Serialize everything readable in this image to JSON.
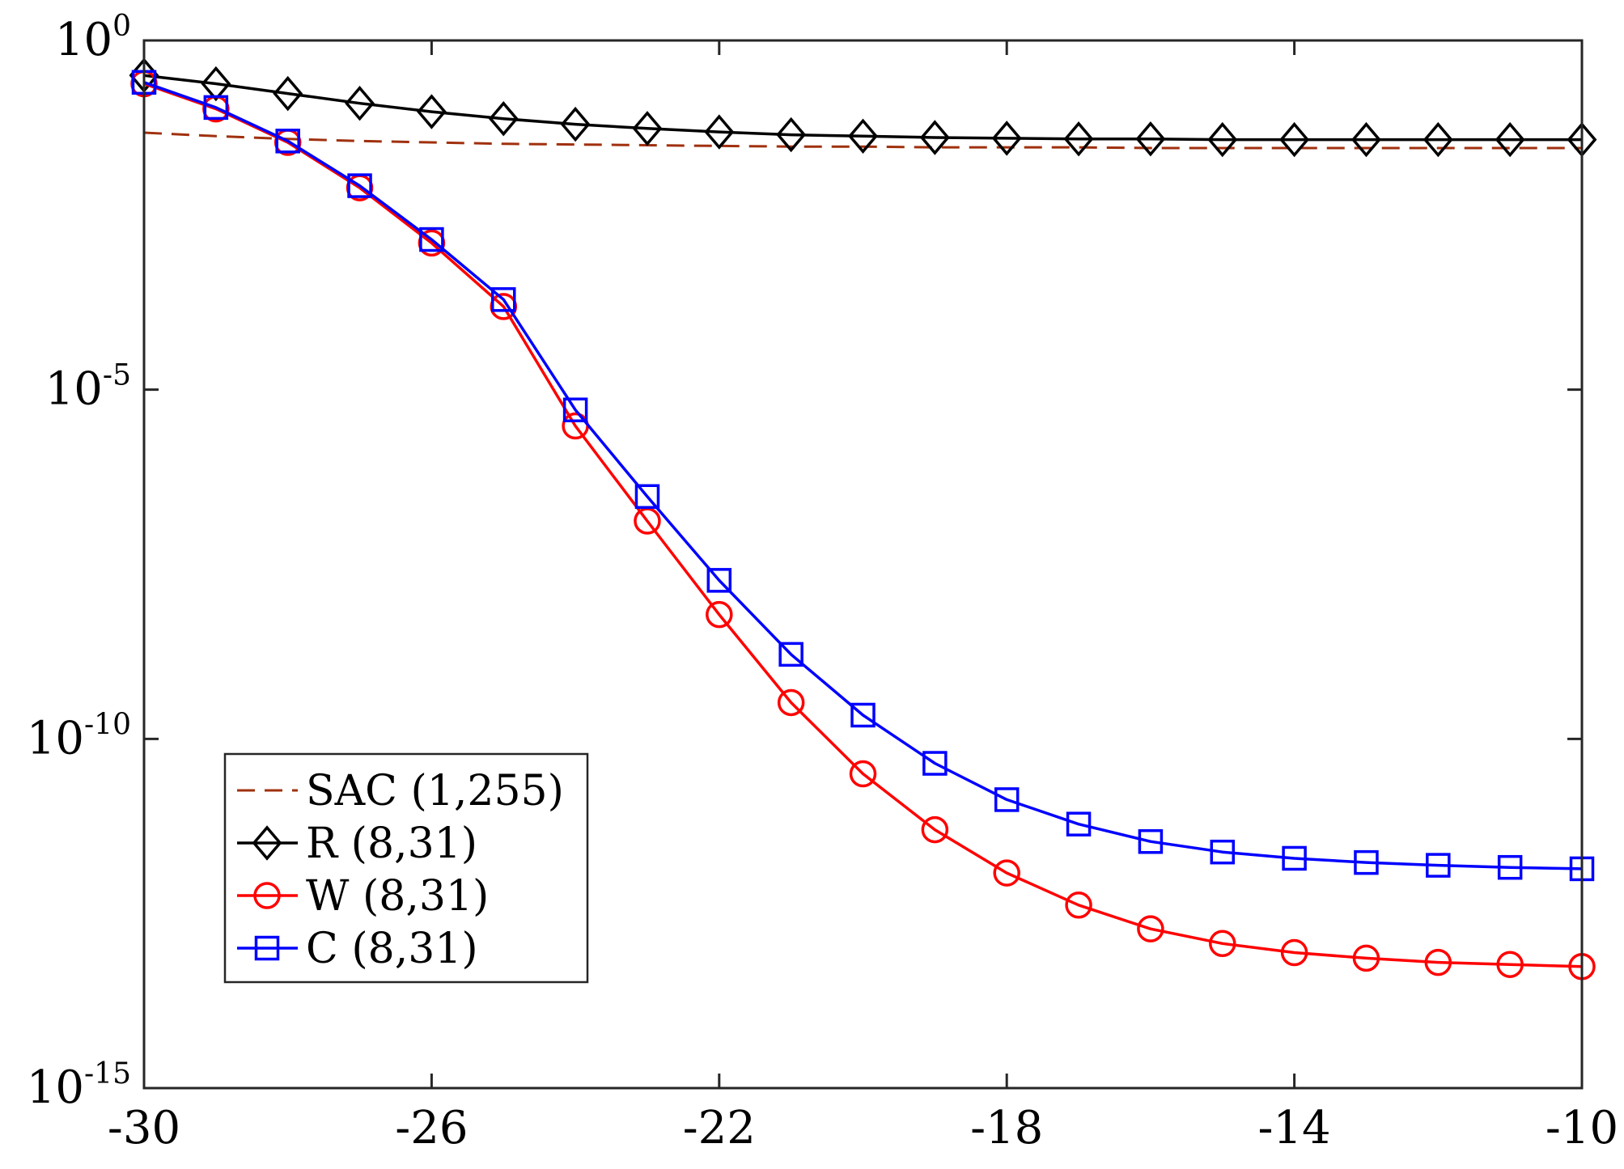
{
  "chart_data": {
    "type": "line",
    "title": "",
    "xlabel": "",
    "ylabel": "",
    "xscale": "linear",
    "yscale": "log",
    "xlim": [
      -30,
      -10
    ],
    "ylim_exp": [
      -15,
      0
    ],
    "x_ticks": [
      "-30",
      "-26",
      "-22",
      "-18",
      "-14",
      "-10"
    ],
    "x_tick_values": [
      -30,
      -26,
      -22,
      -18,
      -14,
      -10
    ],
    "y_ticks": [
      {
        "base": "10",
        "exp": "0",
        "value_exp": 0
      },
      {
        "base": "10",
        "exp": "-5",
        "value_exp": -5
      },
      {
        "base": "10",
        "exp": "-10",
        "value_exp": -10
      },
      {
        "base": "10",
        "exp": "-15",
        "value_exp": -15
      }
    ],
    "legend_position": "bottom-left",
    "series": [
      {
        "name": "SAC (1,255)",
        "color": "#a0300e",
        "style": "dashed",
        "marker": "none",
        "x": [
          -30,
          -29,
          -28,
          -27,
          -26,
          -25,
          -24,
          -23,
          -22,
          -21,
          -20,
          -19,
          -18,
          -17,
          -16,
          -15,
          -14,
          -13,
          -12,
          -11,
          -10
        ],
        "log10_y": [
          -1.32,
          -1.37,
          -1.41,
          -1.44,
          -1.46,
          -1.48,
          -1.49,
          -1.5,
          -1.51,
          -1.52,
          -1.52,
          -1.53,
          -1.53,
          -1.53,
          -1.54,
          -1.54,
          -1.54,
          -1.54,
          -1.54,
          -1.54,
          -1.54
        ]
      },
      {
        "name": "R (8,31)",
        "color": "#000000",
        "style": "solid",
        "marker": "diamond",
        "x": [
          -30,
          -29,
          -28,
          -27,
          -26,
          -25,
          -24,
          -23,
          -22,
          -21,
          -20,
          -19,
          -18,
          -17,
          -16,
          -15,
          -14,
          -13,
          -12,
          -11,
          -10
        ],
        "log10_y": [
          -0.5,
          -0.62,
          -0.76,
          -0.9,
          -1.02,
          -1.12,
          -1.2,
          -1.26,
          -1.31,
          -1.35,
          -1.37,
          -1.39,
          -1.4,
          -1.41,
          -1.41,
          -1.42,
          -1.42,
          -1.42,
          -1.42,
          -1.42,
          -1.42
        ]
      },
      {
        "name": "W (8,31)",
        "color": "#ff0000",
        "style": "solid",
        "marker": "circle",
        "x": [
          -30,
          -29,
          -28,
          -27,
          -26,
          -25,
          -24,
          -23,
          -22,
          -21,
          -20,
          -19,
          -18,
          -17,
          -16,
          -15,
          -14,
          -13,
          -12,
          -11,
          -10
        ],
        "log10_y": [
          -0.62,
          -0.98,
          -1.46,
          -2.11,
          -2.9,
          -3.81,
          -5.52,
          -6.88,
          -8.22,
          -9.48,
          -10.5,
          -11.3,
          -11.92,
          -12.38,
          -12.72,
          -12.93,
          -13.06,
          -13.14,
          -13.2,
          -13.23,
          -13.26
        ]
      },
      {
        "name": "C (8,31)",
        "color": "#0000ff",
        "style": "solid",
        "marker": "square",
        "x": [
          -30,
          -29,
          -28,
          -27,
          -26,
          -25,
          -24,
          -23,
          -22,
          -21,
          -20,
          -19,
          -18,
          -17,
          -16,
          -15,
          -14,
          -13,
          -12,
          -11,
          -10
        ],
        "log10_y": [
          -0.6,
          -0.96,
          -1.44,
          -2.08,
          -2.85,
          -3.71,
          -5.29,
          -6.53,
          -7.73,
          -8.79,
          -9.66,
          -10.35,
          -10.87,
          -11.22,
          -11.47,
          -11.62,
          -11.71,
          -11.77,
          -11.81,
          -11.84,
          -11.86
        ]
      }
    ]
  }
}
